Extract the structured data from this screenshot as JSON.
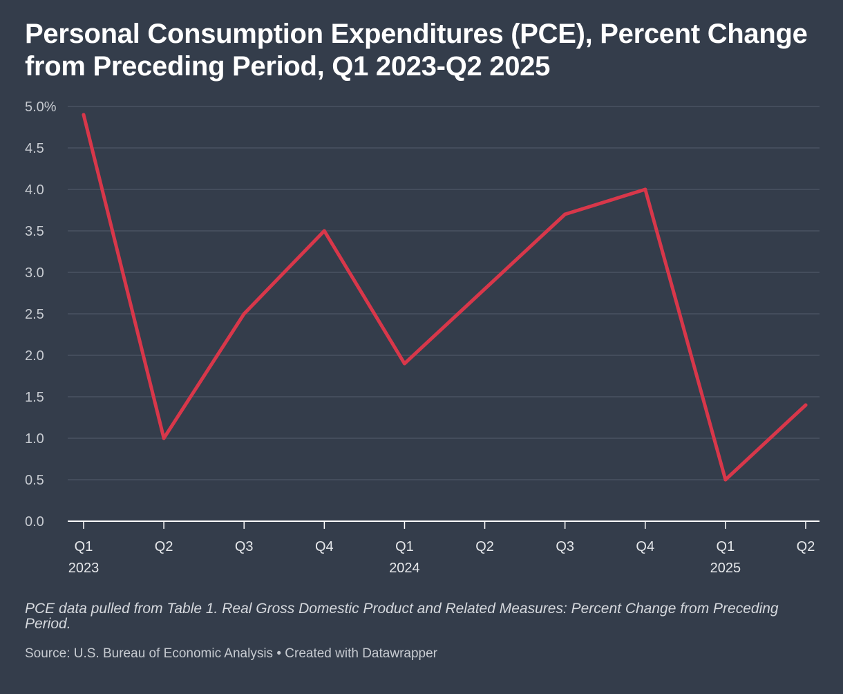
{
  "title": "Personal Consumption Expenditures (PCE), Percent Change from Preceding Period, Q1 2023-Q2 2025",
  "note": "PCE data pulled from Table 1. Real Gross Domestic Product and Related Measures: Percent Change from Preceding Period.",
  "source": "Source: U.S. Bureau of Economic Analysis • Created with Datawrapper",
  "colors": {
    "background": "#343d4b",
    "line": "#d8374a",
    "grid": "#4a5362",
    "axis": "#ffffff"
  },
  "chart_data": {
    "type": "line",
    "x": [
      "Q1 2023",
      "Q2 2023",
      "Q3 2023",
      "Q4 2023",
      "Q1 2024",
      "Q2 2024",
      "Q3 2024",
      "Q4 2024",
      "Q1 2025",
      "Q2 2025"
    ],
    "x_tick_labels": [
      "Q1",
      "Q2",
      "Q3",
      "Q4",
      "Q1",
      "Q2",
      "Q3",
      "Q4",
      "Q1",
      "Q2"
    ],
    "x_year_labels": [
      "2023",
      "",
      "",
      "",
      "2024",
      "",
      "",
      "",
      "2025",
      ""
    ],
    "series": [
      {
        "values": [
          4.9,
          1.0,
          2.5,
          3.5,
          1.9,
          2.8,
          3.7,
          4.0,
          0.5,
          1.4
        ]
      }
    ],
    "y_ticks": [
      0,
      0.5,
      1,
      1.5,
      2,
      2.5,
      3,
      3.5,
      4,
      4.5,
      5
    ],
    "y_tick_labels": [
      "0.0",
      "0.5",
      "1.0",
      "1.5",
      "2.0",
      "2.5",
      "3.0",
      "3.5",
      "4.0",
      "4.5",
      "5.0%"
    ],
    "ylim": [
      0,
      5
    ],
    "grid": true,
    "legend": "none"
  }
}
